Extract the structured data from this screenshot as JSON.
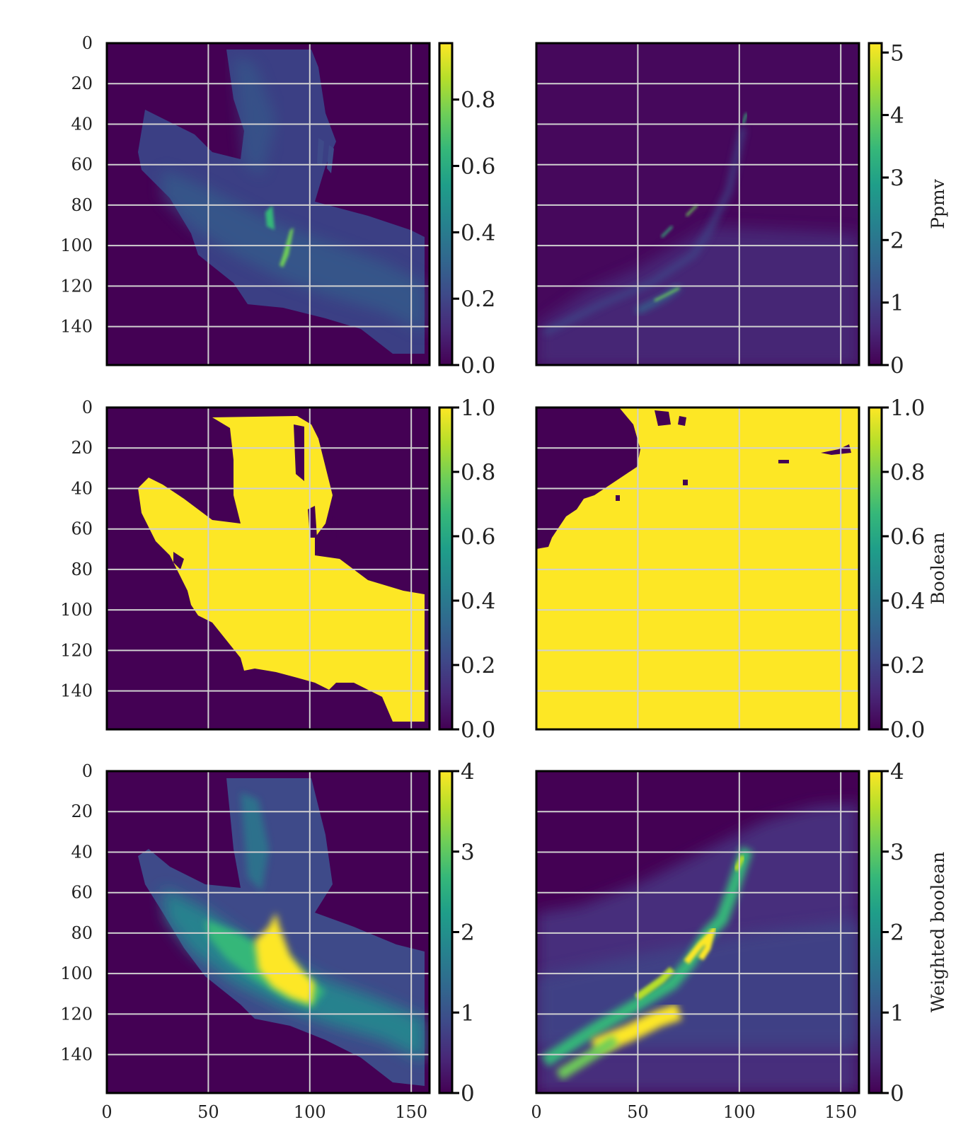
{
  "chart_data": [
    {
      "type": "heatmap",
      "row": 0,
      "col": 0,
      "x_ticks": [
        0,
        50,
        100,
        150
      ],
      "y_ticks": [
        0,
        20,
        40,
        60,
        80,
        100,
        120,
        140
      ],
      "xlim": [
        0,
        159
      ],
      "ylim": [
        159,
        0
      ],
      "show_x_tick_labels": false,
      "show_y_tick_labels": true,
      "grid": true,
      "colormap": "viridis",
      "colorbar": {
        "ticks": [
          "0.0",
          "0.2",
          "0.4",
          "0.6",
          "0.8"
        ],
        "tick_values": [
          0,
          0.2,
          0.4,
          0.6,
          0.8
        ],
        "range": [
          0,
          0.97
        ],
        "label": ""
      }
    },
    {
      "type": "heatmap",
      "row": 0,
      "col": 1,
      "x_ticks": [
        0,
        50,
        100,
        150
      ],
      "y_ticks": [
        0,
        20,
        40,
        60,
        80,
        100,
        120,
        140
      ],
      "xlim": [
        0,
        159
      ],
      "ylim": [
        159,
        0
      ],
      "show_x_tick_labels": false,
      "show_y_tick_labels": false,
      "grid": true,
      "colormap": "viridis",
      "colorbar": {
        "ticks": [
          "0",
          "1",
          "2",
          "3",
          "4",
          "5"
        ],
        "tick_values": [
          0,
          1,
          2,
          3,
          4,
          5
        ],
        "range": [
          0,
          5.15
        ],
        "label": "Ppmv"
      }
    },
    {
      "type": "heatmap",
      "row": 1,
      "col": 0,
      "x_ticks": [
        0,
        50,
        100,
        150
      ],
      "y_ticks": [
        0,
        20,
        40,
        60,
        80,
        100,
        120,
        140
      ],
      "xlim": [
        0,
        159
      ],
      "ylim": [
        159,
        0
      ],
      "show_x_tick_labels": false,
      "show_y_tick_labels": true,
      "grid": true,
      "colormap": "viridis",
      "colorbar": {
        "ticks": [
          "0.0",
          "0.2",
          "0.4",
          "0.6",
          "0.8",
          "1.0"
        ],
        "tick_values": [
          0,
          0.2,
          0.4,
          0.6,
          0.8,
          1.0
        ],
        "range": [
          0,
          1.0
        ],
        "label": ""
      }
    },
    {
      "type": "heatmap",
      "row": 1,
      "col": 1,
      "x_ticks": [
        0,
        50,
        100,
        150
      ],
      "y_ticks": [
        0,
        20,
        40,
        60,
        80,
        100,
        120,
        140
      ],
      "xlim": [
        0,
        159
      ],
      "ylim": [
        159,
        0
      ],
      "show_x_tick_labels": false,
      "show_y_tick_labels": false,
      "grid": true,
      "colormap": "viridis",
      "colorbar": {
        "ticks": [
          "0.0",
          "0.2",
          "0.4",
          "0.6",
          "0.8",
          "1.0"
        ],
        "tick_values": [
          0,
          0.2,
          0.4,
          0.6,
          0.8,
          1.0
        ],
        "range": [
          0,
          1.0
        ],
        "label": "Boolean"
      }
    },
    {
      "type": "heatmap",
      "row": 2,
      "col": 0,
      "x_ticks": [
        0,
        50,
        100,
        150
      ],
      "y_ticks": [
        0,
        20,
        40,
        60,
        80,
        100,
        120,
        140
      ],
      "xlim": [
        0,
        159
      ],
      "ylim": [
        159,
        0
      ],
      "show_x_tick_labels": true,
      "show_y_tick_labels": true,
      "grid": true,
      "colormap": "viridis",
      "colorbar": {
        "ticks": [
          "0",
          "1",
          "2",
          "3",
          "4"
        ],
        "tick_values": [
          0,
          1,
          2,
          3,
          4
        ],
        "range": [
          0,
          4.0
        ],
        "label": ""
      }
    },
    {
      "type": "heatmap",
      "row": 2,
      "col": 1,
      "x_ticks": [
        0,
        50,
        100,
        150
      ],
      "y_ticks": [
        0,
        20,
        40,
        60,
        80,
        100,
        120,
        140
      ],
      "xlim": [
        0,
        159
      ],
      "ylim": [
        159,
        0
      ],
      "show_x_tick_labels": true,
      "show_y_tick_labels": false,
      "grid": true,
      "colormap": "viridis",
      "colorbar": {
        "ticks": [
          "0",
          "1",
          "2",
          "3",
          "4"
        ],
        "tick_values": [
          0,
          1,
          2,
          3,
          4
        ],
        "range": [
          0,
          4.0
        ],
        "label": "Weighted boolean"
      }
    }
  ],
  "colors": {
    "background": "#440154",
    "grid": "#d0d0d0",
    "viridis": [
      "#440154",
      "#482878",
      "#3e4a89",
      "#31688e",
      "#26828e",
      "#1f9e89",
      "#35b779",
      "#6ece58",
      "#b5de2b",
      "#fde725"
    ]
  }
}
